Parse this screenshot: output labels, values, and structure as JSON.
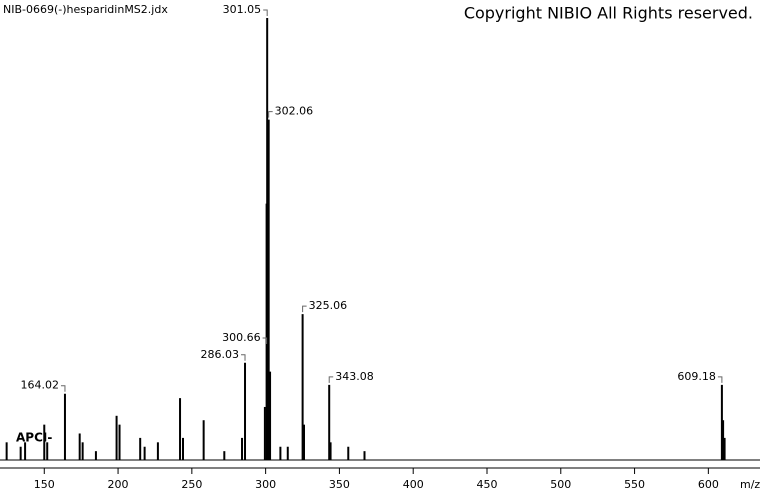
{
  "chart_data": {
    "type": "spectrum",
    "title": "NIB-0669(-)hesparidinMS2.jdx",
    "subtitle": "Copyright NIBIO All Rights reserved.",
    "annotation": "APCI-",
    "x_label": "m/z",
    "color": "#000000",
    "xlim": [
      120,
      635
    ],
    "ylim": [
      0,
      100
    ],
    "xticks": [
      150,
      200,
      250,
      300,
      350,
      400,
      450,
      500,
      550,
      600
    ],
    "x": [
      124.5,
      134,
      137,
      150,
      152,
      164.02,
      174,
      176,
      185,
      199,
      201,
      215,
      218,
      227,
      242,
      244,
      258,
      272,
      284,
      286.03,
      299.5,
      300.66,
      301.05,
      302.06,
      303,
      310,
      315,
      325.06,
      326,
      343.08,
      344,
      356,
      367,
      609.18,
      610,
      611
    ],
    "values": [
      4,
      3,
      4,
      8,
      4,
      15,
      6,
      4,
      2,
      10,
      8,
      5,
      3,
      4,
      14,
      5,
      9,
      2,
      5,
      22,
      12,
      58,
      100,
      77,
      20,
      3,
      3,
      33,
      8,
      17,
      4,
      3,
      2,
      17,
      9,
      5
    ],
    "peak_labels": [
      null,
      null,
      null,
      null,
      null,
      "164.02",
      null,
      null,
      null,
      null,
      null,
      null,
      null,
      null,
      null,
      null,
      null,
      null,
      null,
      "286.03",
      null,
      "300.66",
      "301.05",
      "302.06",
      null,
      null,
      null,
      "325.06",
      null,
      "343.08",
      null,
      null,
      null,
      "609.18",
      null,
      null
    ]
  }
}
